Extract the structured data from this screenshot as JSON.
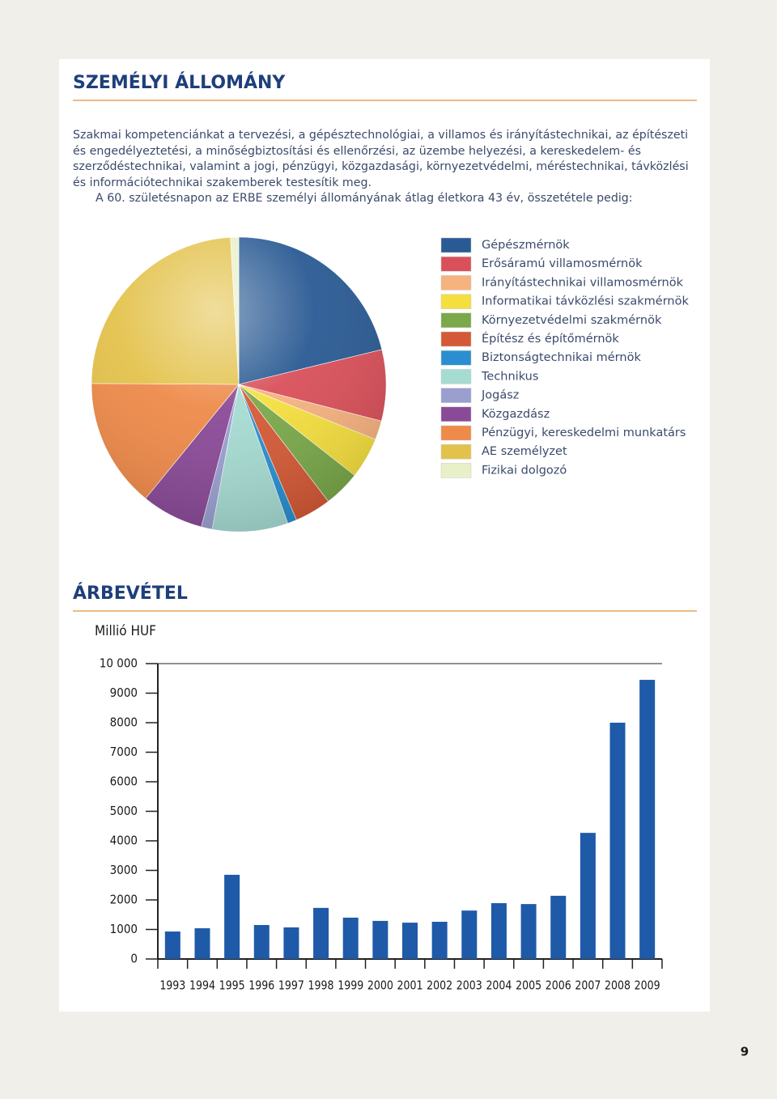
{
  "sections": [
    {
      "title": "SZEMÉLYI ÁLLOMÁNY",
      "paragraphs": [
        "Szakmai kompetenciánkat a tervezési, a gépésztechnológiai, a villamos és irányítástechnikai, az építészeti és engedélyeztetési, a minőségbiztosítási és ellenőrzési, az üzembe helyezési, a kereskedelem- és szerződéstechnikai, valamint a jogi, pénzügyi, közgazdasági, környezetvédelmi, méréstechnikai, távközlési és információtechnikai szakemberek testesítik meg.",
        "A 60. születésnapon az ERBE személyi állományának átlag életkora 43 év, összetétele pedig:"
      ]
    }
  ],
  "page_number": "9",
  "chart_data": [
    {
      "type": "pie",
      "categories": [
        "Gépészmérnök",
        "Erősáramú villamosmérnök",
        "Irányítástechnikai villamosmérnök",
        "Informatikai távközlési szakmérnök",
        "Környezetvédelmi szakmérnök",
        "Építész és építőmérnök",
        "Biztonságtechnikai mérnök",
        "Technikus",
        "Jogász",
        "Közgazdász",
        "Pénzügyi, kereskedelmi munkatárs",
        "AE személyzet",
        "Fizikai dolgozó"
      ],
      "values": [
        21.2,
        7.8,
        2.1,
        4.5,
        4,
        4,
        1,
        8.3,
        1.2,
        6.8,
        14.2,
        24,
        0.9
      ],
      "colors": [
        "#2a5a93",
        "#d9505a",
        "#f6b27f",
        "#f5df3f",
        "#7aa84a",
        "#d45a37",
        "#2a8fd0",
        "#a6dbd2",
        "#9a9fd0",
        "#8a4a97",
        "#ee8a4a",
        "#e3c24c",
        "#e8f0c8"
      ]
    },
    {
      "type": "bar",
      "title": "ÁRBEVÉTEL",
      "y_label": "Millió HUF",
      "categories": [
        "1993",
        "1994",
        "1995",
        "1996",
        "1997",
        "1998",
        "1999",
        "2000",
        "2001",
        "2002",
        "2003",
        "2004",
        "2005",
        "2006",
        "2007",
        "2008",
        "2009"
      ],
      "values": [
        930,
        1040,
        2850,
        1150,
        1070,
        1730,
        1400,
        1290,
        1230,
        1260,
        1640,
        1890,
        1860,
        2140,
        4270,
        8000,
        9450
      ],
      "color": "#1e5aa8",
      "ylim": [
        0,
        10000
      ],
      "yticks": [
        0,
        1000,
        2000,
        3000,
        4000,
        5000,
        6000,
        7000,
        8000,
        9000,
        {
          "value": 10000,
          "label": "10 000"
        }
      ]
    }
  ]
}
